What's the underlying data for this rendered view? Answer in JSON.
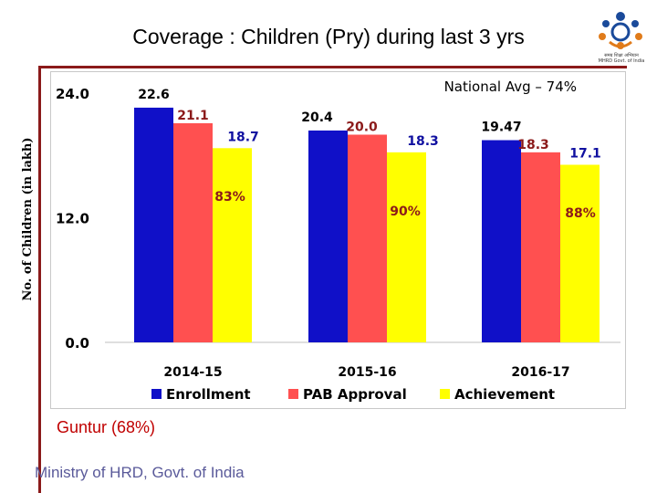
{
  "title": "Coverage : Children (Pry) during last 3 yrs",
  "logo": {
    "caption": "समग्र शिक्षा अभियान\nMHRD Govt. of India"
  },
  "footer": {
    "district_label": "Guntur (68%)",
    "ministry": "Ministry of HRD, Govt. of India"
  },
  "colors": {
    "enrollment": "#1010c8",
    "pab": "#ff5050",
    "achievement": "#ffff00",
    "accent": "#8b1a1a"
  },
  "chart_data": {
    "type": "bar",
    "ylabel": "No. of Children (in lakh)",
    "yticks": [
      "0.0",
      "12.0",
      "24.0"
    ],
    "ylim": [
      0,
      24
    ],
    "categories": [
      "2014-15",
      "2015-16",
      "2016-17"
    ],
    "series": [
      {
        "name": "Enrollment",
        "values": [
          22.6,
          20.4,
          19.47
        ],
        "labels": [
          "22.6",
          "20.4",
          "19.47"
        ],
        "color": "#1010c8",
        "label_color": "#000000"
      },
      {
        "name": "PAB Approval",
        "values": [
          21.1,
          20.0,
          18.3
        ],
        "labels": [
          "21.1",
          "20.0",
          "18.3"
        ],
        "color": "#ff5050",
        "label_color": "#8b1a1a"
      },
      {
        "name": "Achievement",
        "values": [
          18.7,
          18.3,
          17.1
        ],
        "labels": [
          "18.7",
          "18.3",
          "17.1"
        ],
        "color": "#ffff00",
        "label_color": "#1010a0"
      }
    ],
    "coverage_labels": [
      "83%",
      "90%",
      "88%"
    ],
    "annotation": "National Avg – 74%",
    "grid": false,
    "legend_position": "bottom"
  }
}
